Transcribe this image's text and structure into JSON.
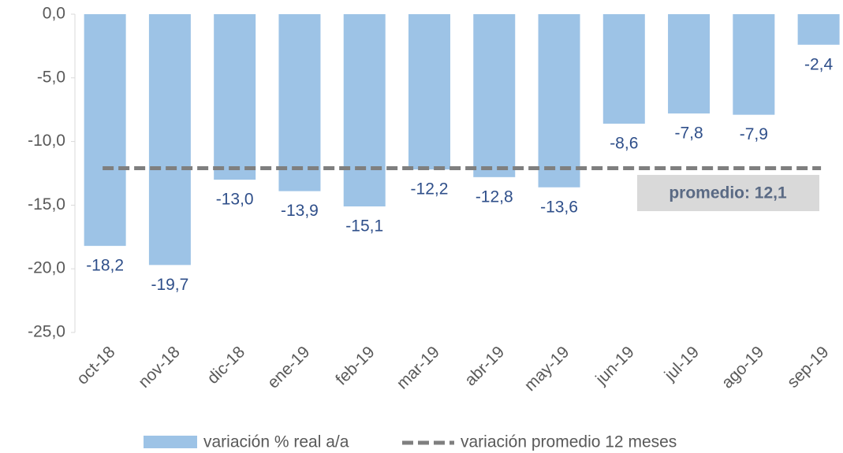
{
  "chart_data": {
    "type": "bar",
    "categories": [
      "oct-18",
      "nov-18",
      "dic-18",
      "ene-19",
      "feb-19",
      "mar-19",
      "abr-19",
      "may-19",
      "jun-19",
      "jul-19",
      "ago-19",
      "sep-19"
    ],
    "series": [
      {
        "name": "variación % real a/a",
        "color": "#9dc3e6",
        "values": [
          -18.2,
          -19.7,
          -13.0,
          -13.9,
          -15.1,
          -12.2,
          -12.8,
          -13.6,
          -8.6,
          -7.8,
          -7.9,
          -2.4
        ],
        "value_labels": [
          "-18,2",
          "-19,7",
          "-13,0",
          "-13,9",
          "-15,1",
          "-12,2",
          "-12,8",
          "-13,6",
          "-8,6",
          "-7,8",
          "-7,9",
          "-2,4"
        ]
      }
    ],
    "reference_line": {
      "name": "variación promedio 12 meses",
      "value": -12.1,
      "color": "#7f7f7f"
    },
    "annotation": "promedio: 12,1",
    "ylim": [
      -25,
      0
    ],
    "yticks": [
      {
        "value": 0,
        "label": "0,0"
      },
      {
        "value": -5,
        "label": "-5,0"
      },
      {
        "value": -10,
        "label": "-10,0"
      },
      {
        "value": -15,
        "label": "-15,0"
      },
      {
        "value": -20,
        "label": "-20,0"
      },
      {
        "value": -25,
        "label": "-25,0"
      }
    ]
  }
}
